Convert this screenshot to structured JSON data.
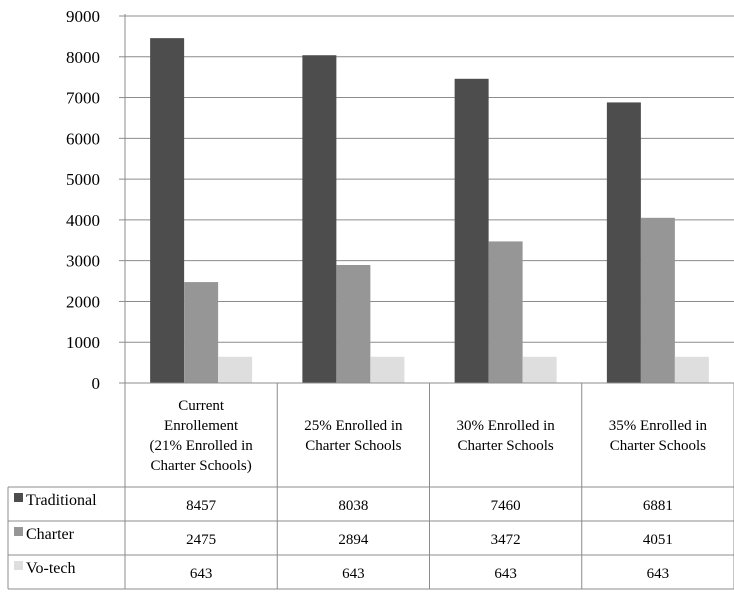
{
  "chart_data": {
    "type": "bar",
    "title": "",
    "xlabel": "",
    "ylabel": "",
    "ylim": [
      0,
      9000
    ],
    "yticks": [
      0,
      1000,
      2000,
      3000,
      4000,
      5000,
      6000,
      7000,
      8000,
      9000
    ],
    "grid": true,
    "legend": "data table, left",
    "categories": [
      "Current Enrollement (21% Enrolled in Charter Schools)",
      "25% Enrolled in Charter Schools",
      "30% Enrolled in Charter Schools",
      "35% Enrolled in Charter Schools"
    ],
    "category_lines": [
      [
        "Current",
        "Enrollement",
        "(21% Enrolled in",
        "Charter Schools)"
      ],
      [
        "25% Enrolled in",
        "Charter Schools"
      ],
      [
        "30% Enrolled in",
        "Charter Schools"
      ],
      [
        "35% Enrolled in",
        "Charter Schools"
      ]
    ],
    "series": [
      {
        "name": "Traditional",
        "color": "#4d4d4d",
        "values": [
          8457,
          8038,
          7460,
          6881
        ]
      },
      {
        "name": "Charter",
        "color": "#969696",
        "values": [
          2475,
          2894,
          3472,
          4051
        ]
      },
      {
        "name": "Vo-tech",
        "color": "#dedede",
        "values": [
          643,
          643,
          643,
          643
        ]
      }
    ]
  }
}
